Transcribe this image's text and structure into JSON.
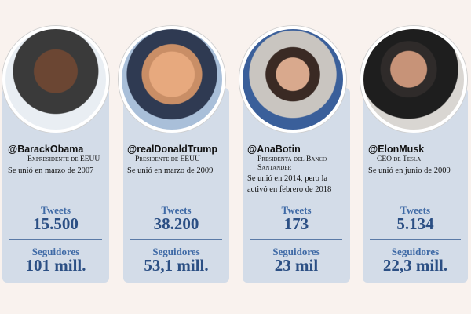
{
  "profiles": [
    {
      "handle": "@BarackObama",
      "role": "Expresidente de EEUU",
      "joined": "Se unió en marzo de 2007",
      "tweets_label": "Tweets",
      "tweets_value": "15.500",
      "followers_label": "Seguidores",
      "followers_value": "101 mill."
    },
    {
      "handle": "@realDonaldTrump",
      "role": "Presidente de EEUU",
      "joined": "Se unió en marzo de 2009",
      "tweets_label": "Tweets",
      "tweets_value": "38.200",
      "followers_label": "Seguidores",
      "followers_value": "53,1 mill."
    },
    {
      "handle": "@AnaBotin",
      "role": "Presidenta del Banco Santander",
      "joined": "Se unió en 2014, pero la activó en febrero de 2018",
      "tweets_label": "Tweets",
      "tweets_value": "173",
      "followers_label": "Seguidores",
      "followers_value": "23 mil"
    },
    {
      "handle": "@ElonMusk",
      "role": "CEO de Tesla",
      "joined": "Se unió en junio de 2009",
      "tweets_label": "Tweets",
      "tweets_value": "5.134",
      "followers_label": "Seguidores",
      "followers_value": "22,3 mill."
    }
  ]
}
